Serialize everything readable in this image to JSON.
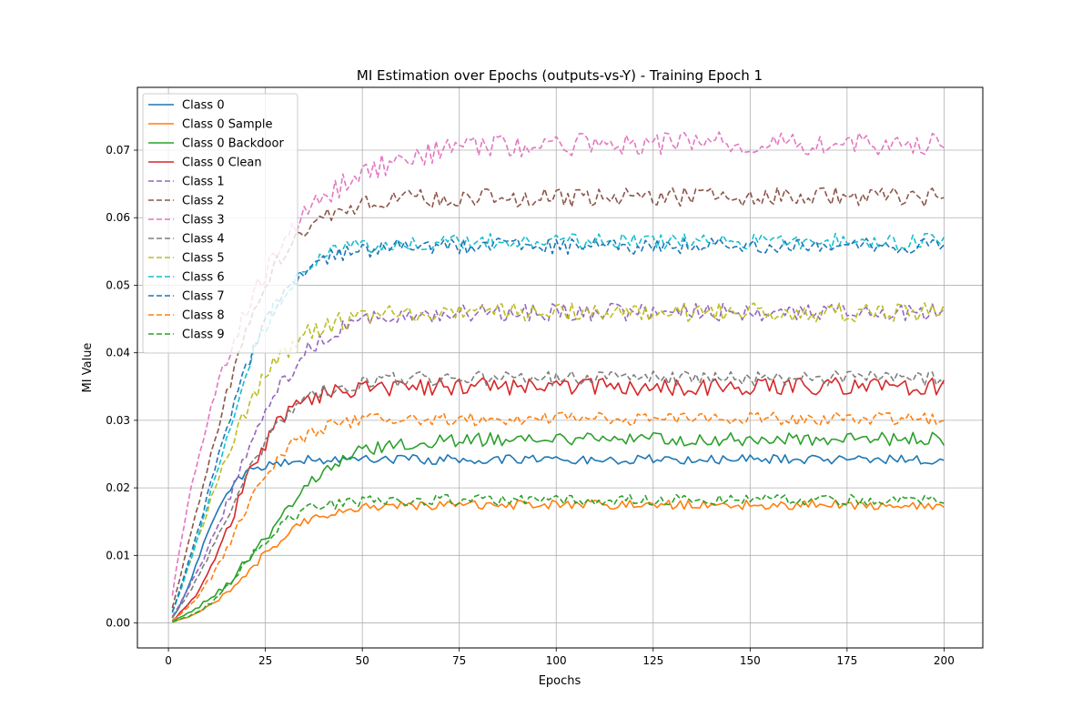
{
  "chart_data": {
    "type": "line",
    "title": "MI Estimation over Epochs (outputs-vs-Y) - Training Epoch 1",
    "xlabel": "Epochs",
    "ylabel": "MI Value",
    "xlim": [
      -8,
      210
    ],
    "ylim": [
      -0.0037,
      0.0793
    ],
    "xticks": [
      0,
      25,
      50,
      75,
      100,
      125,
      150,
      175,
      200
    ],
    "yticks": [
      0.0,
      0.01,
      0.02,
      0.03,
      0.04,
      0.05,
      0.06,
      0.07
    ],
    "ytick_labels": [
      "0.00",
      "0.01",
      "0.02",
      "0.03",
      "0.04",
      "0.05",
      "0.06",
      "0.07"
    ],
    "grid": true,
    "legend_position": "upper-left",
    "x_range": [
      1,
      200
    ],
    "series": [
      {
        "name": "Class 0",
        "color": "#1f77b4",
        "dash": "solid",
        "plateau": 0.0242,
        "rate": 0.105,
        "delay": 7,
        "noise": 0.0007,
        "seed": 11
      },
      {
        "name": "Class 0 Sample",
        "color": "#ff7f0e",
        "dash": "solid",
        "plateau": 0.0175,
        "rate": 0.06,
        "delay": 22,
        "noise": 0.0007,
        "seed": 12
      },
      {
        "name": "Class 0 Backdoor",
        "color": "#2ca02c",
        "dash": "solid",
        "plateau": 0.0272,
        "rate": 0.05,
        "delay": 26,
        "noise": 0.001,
        "seed": 13
      },
      {
        "name": "Class 0 Clean",
        "color": "#d62728",
        "dash": "solid",
        "plateau": 0.035,
        "rate": 0.07,
        "delay": 17,
        "noise": 0.0013,
        "seed": 14
      },
      {
        "name": "Class 1",
        "color": "#9467bd",
        "dash": "dashed",
        "plateau": 0.046,
        "rate": 0.05,
        "delay": 18,
        "noise": 0.0013,
        "seed": 15
      },
      {
        "name": "Class 2",
        "color": "#8c564b",
        "dash": "dashed",
        "plateau": 0.063,
        "rate": 0.05,
        "delay": 12,
        "noise": 0.0015,
        "seed": 16
      },
      {
        "name": "Class 3",
        "color": "#e377c2",
        "dash": "dashed",
        "plateau": 0.071,
        "rate": 0.03,
        "delay": 9,
        "noise": 0.0017,
        "seed": 17
      },
      {
        "name": "Class 4",
        "color": "#7f7f7f",
        "dash": "dashed",
        "plateau": 0.0362,
        "rate": 0.055,
        "delay": 16,
        "noise": 0.0011,
        "seed": 18
      },
      {
        "name": "Class 5",
        "color": "#bcbd22",
        "dash": "dashed",
        "plateau": 0.046,
        "rate": 0.05,
        "delay": 12,
        "noise": 0.0014,
        "seed": 19
      },
      {
        "name": "Class 6",
        "color": "#17becf",
        "dash": "dashed",
        "plateau": 0.0565,
        "rate": 0.055,
        "delay": 14,
        "noise": 0.0012,
        "seed": 20
      },
      {
        "name": "Class 7",
        "color": "#1f77b4",
        "dash": "dashed",
        "plateau": 0.0558,
        "rate": 0.055,
        "delay": 13,
        "noise": 0.0012,
        "seed": 21
      },
      {
        "name": "Class 8",
        "color": "#ff7f0e",
        "dash": "dashed",
        "plateau": 0.0302,
        "rate": 0.065,
        "delay": 18,
        "noise": 0.001,
        "seed": 22
      },
      {
        "name": "Class 9",
        "color": "#2ca02c",
        "dash": "dashed",
        "plateau": 0.0182,
        "rate": 0.07,
        "delay": 20,
        "noise": 0.0008,
        "seed": 23
      }
    ]
  }
}
